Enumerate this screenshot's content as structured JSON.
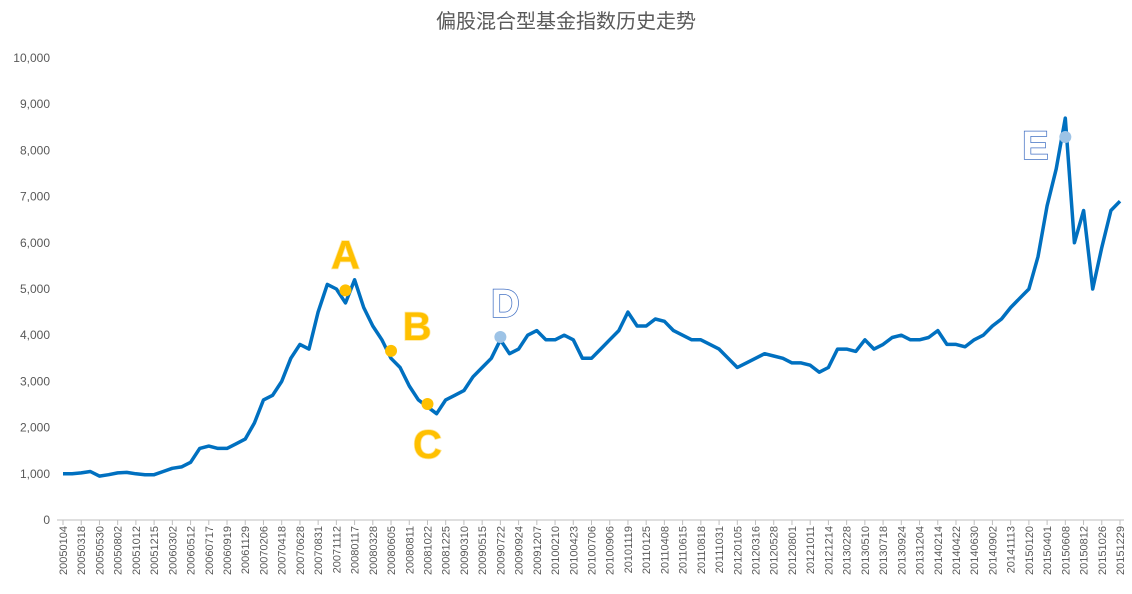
{
  "chart_data": {
    "type": "line",
    "title": "偏股混合型基金指数历史走势",
    "categories": [
      "20050104",
      null,
      "20050318",
      null,
      "20050530",
      null,
      "20050802",
      null,
      "20051012",
      null,
      "20051215",
      null,
      "20060302",
      null,
      "20060512",
      null,
      "20060717",
      null,
      "20060919",
      null,
      "20061129",
      null,
      "20070206",
      null,
      "20070418",
      null,
      "20070628",
      null,
      "20070831",
      null,
      "20071112",
      null,
      "20080117",
      null,
      "20080328",
      null,
      "20080605",
      null,
      "20080811",
      null,
      "20081022",
      null,
      "20081225",
      null,
      "20090310",
      null,
      "20090515",
      null,
      "20090722",
      null,
      "20090924",
      null,
      "20091207",
      null,
      "20100210",
      null,
      "20100423",
      null,
      "20100706",
      null,
      "20100906",
      null,
      "20101119",
      null,
      "20110125",
      null,
      "20110408",
      null,
      "20110615",
      null,
      "20110818",
      null,
      "20111031",
      null,
      "20120105",
      null,
      "20120316",
      null,
      "20120528",
      null,
      "20120801",
      null,
      "20121011",
      null,
      "20121214",
      null,
      "20130228",
      null,
      "20130510",
      null,
      "20130718",
      null,
      "20130924",
      null,
      "20131204",
      null,
      "20140214",
      null,
      "20140422",
      null,
      "20140630",
      null,
      "20140902",
      null,
      "20141113",
      null,
      "20150120",
      null,
      "20150401",
      null,
      "20150608",
      null,
      "20150812",
      null,
      "20151026",
      null,
      "20151229"
    ],
    "series": [
      {
        "color": "#0070c0",
        "values": [
          1000,
          1000,
          1020,
          1050,
          950,
          980,
          1020,
          1030,
          1000,
          980,
          980,
          1050,
          1120,
          1150,
          1250,
          1550,
          1600,
          1550,
          1550,
          1650,
          1750,
          2100,
          2600,
          2700,
          3000,
          3500,
          3800,
          3700,
          4500,
          5100,
          5000,
          4700,
          5200,
          4600,
          4200,
          3900,
          3500,
          3300,
          2900,
          2600,
          2450,
          2300,
          2600,
          2700,
          2800,
          3100,
          3300,
          3500,
          3900,
          3600,
          3700,
          4000,
          4100,
          3900,
          3900,
          4000,
          3900,
          3500,
          3500,
          3700,
          3900,
          4100,
          4500,
          4200,
          4200,
          4350,
          4300,
          4100,
          4000,
          3900,
          3900,
          3800,
          3700,
          3500,
          3300,
          3400,
          3500,
          3600,
          3550,
          3500,
          3400,
          3400,
          3350,
          3200,
          3300,
          3700,
          3700,
          3650,
          3900,
          3700,
          3800,
          3950,
          4000,
          3900,
          3900,
          3950,
          4100,
          3800,
          3800,
          3750,
          3900,
          4000,
          4200,
          4350,
          4600,
          4800,
          5000,
          5700,
          6800,
          7600,
          8700,
          6000,
          6700,
          5000,
          5900,
          6700,
          6900
        ]
      },
      {
        "color": "#ffc000",
        "values": [
          null,
          null,
          null,
          null,
          null,
          null,
          null,
          null,
          null,
          null,
          null,
          null,
          null,
          null,
          null,
          null,
          null,
          null,
          null,
          null,
          null,
          null,
          null,
          null,
          null,
          null,
          null,
          null,
          null,
          null,
          null,
          4970,
          null,
          null,
          null,
          null,
          3660,
          null,
          null,
          null,
          2510,
          null,
          null,
          null,
          null,
          null,
          null,
          null,
          null,
          null,
          null,
          null,
          null,
          null,
          null,
          null,
          null,
          null,
          null,
          null,
          null,
          null,
          null,
          null,
          null,
          null,
          null,
          null,
          null,
          null,
          null,
          null,
          null,
          null,
          null,
          null,
          null,
          null,
          null,
          null,
          null,
          null,
          null,
          null,
          null,
          null,
          null,
          null,
          null,
          null,
          null,
          null,
          null,
          null,
          null,
          null,
          null,
          null,
          null,
          null,
          null,
          null,
          null,
          null,
          null,
          null,
          null,
          null,
          null,
          null,
          null,
          null,
          null,
          null,
          null,
          null,
          null
        ],
        "labels": [
          null,
          null,
          null,
          null,
          null,
          null,
          null,
          null,
          null,
          null,
          null,
          null,
          null,
          null,
          null,
          null,
          null,
          null,
          null,
          null,
          null,
          null,
          null,
          null,
          null,
          null,
          null,
          null,
          null,
          null,
          null,
          "A",
          null,
          null,
          null,
          null,
          "B",
          null,
          null,
          null,
          "C",
          null,
          null,
          null,
          null,
          null,
          null,
          null,
          null,
          null,
          null,
          null,
          null,
          null,
          null,
          null,
          null,
          null,
          null,
          null,
          null,
          null,
          null,
          null,
          null,
          null,
          null,
          null,
          null,
          null,
          null,
          null,
          null,
          null,
          null,
          null,
          null,
          null,
          null,
          null,
          null,
          null,
          null,
          null,
          null,
          null,
          null,
          null,
          null,
          null,
          null,
          null,
          null,
          null,
          null,
          null,
          null,
          null,
          null,
          null,
          null,
          null,
          null,
          null,
          null,
          null,
          null,
          null,
          null,
          null,
          null,
          null,
          null,
          null,
          null,
          null,
          null
        ]
      },
      {
        "color": "#9dc3e6",
        "values": [
          null,
          null,
          null,
          null,
          null,
          null,
          null,
          null,
          null,
          null,
          null,
          null,
          null,
          null,
          null,
          null,
          null,
          null,
          null,
          null,
          null,
          null,
          null,
          null,
          null,
          null,
          null,
          null,
          null,
          null,
          null,
          null,
          null,
          null,
          null,
          null,
          null,
          null,
          null,
          null,
          null,
          null,
          null,
          null,
          null,
          null,
          null,
          null,
          3960,
          null,
          null,
          null,
          null,
          null,
          null,
          null,
          null,
          null,
          null,
          null,
          null,
          null,
          null,
          null,
          null,
          null,
          null,
          null,
          null,
          null,
          null,
          null,
          null,
          null,
          null,
          null,
          null,
          null,
          null,
          null,
          null,
          null,
          null,
          null,
          null,
          null,
          null,
          null,
          null,
          null,
          null,
          null,
          null,
          null,
          null,
          null,
          null,
          null,
          null,
          null,
          null,
          null,
          null,
          null,
          null,
          null,
          null,
          null,
          null,
          null,
          8290,
          null,
          null,
          null,
          null,
          null,
          null
        ],
        "labels": [
          null,
          null,
          null,
          null,
          null,
          null,
          null,
          null,
          null,
          null,
          null,
          null,
          null,
          null,
          null,
          null,
          null,
          null,
          null,
          null,
          null,
          null,
          null,
          null,
          null,
          null,
          null,
          null,
          null,
          null,
          null,
          null,
          null,
          null,
          null,
          null,
          null,
          null,
          null,
          null,
          null,
          null,
          null,
          null,
          null,
          null,
          null,
          null,
          "D",
          null,
          null,
          null,
          null,
          null,
          null,
          null,
          null,
          null,
          null,
          null,
          null,
          null,
          null,
          null,
          null,
          null,
          null,
          null,
          null,
          null,
          null,
          null,
          null,
          null,
          null,
          null,
          null,
          null,
          null,
          null,
          null,
          null,
          null,
          null,
          null,
          null,
          null,
          null,
          null,
          null,
          null,
          null,
          null,
          null,
          null,
          null,
          null,
          null,
          null,
          null,
          null,
          null,
          null,
          null,
          null,
          null,
          null,
          null,
          null,
          null,
          "E",
          null,
          null,
          null,
          null,
          null,
          null
        ]
      }
    ],
    "ylim": [
      0,
      10000
    ],
    "yticks": [
      0,
      {
        "value": 1000,
        "label": "1,000"
      },
      {
        "value": 2000,
        "label": "2,000"
      },
      {
        "value": 3000,
        "label": "3,000"
      },
      {
        "value": 4000,
        "label": "4,000"
      },
      {
        "value": 5000,
        "label": "5,000"
      },
      {
        "value": 6000,
        "label": "6,000"
      },
      {
        "value": 7000,
        "label": "7,000"
      },
      {
        "value": 8000,
        "label": "8,000"
      },
      {
        "value": 9000,
        "label": "9,000"
      },
      {
        "value": 10000,
        "label": "10,000"
      }
    ],
    "grid": false
  }
}
